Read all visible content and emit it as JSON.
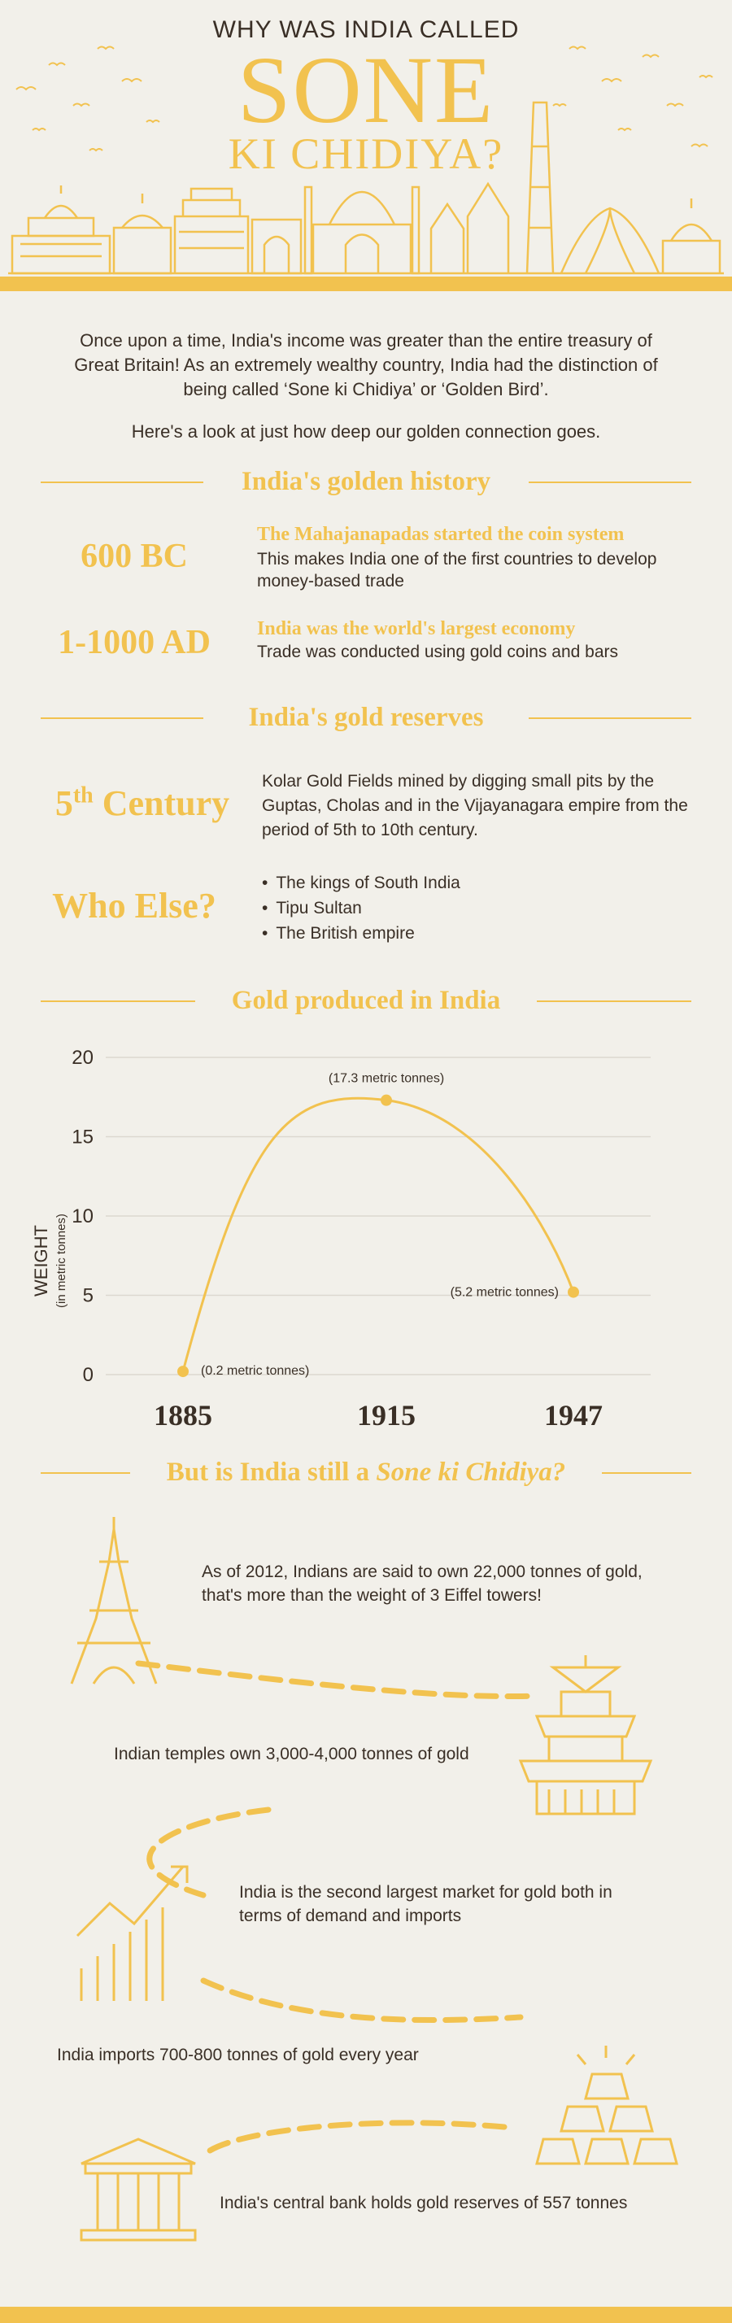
{
  "header": {
    "line1": "WHY WAS INDIA CALLED",
    "line2": "SONE",
    "line3": "KI CHIDIYA?"
  },
  "intro": {
    "p1": "Once upon a time, India's income was greater than the entire treasury of Great Britain! As an extremely wealthy country, India had the distinction of being called ‘Sone ki Chidiya’ or ‘Golden Bird’.",
    "p2": "Here's a look at just how deep our golden connection goes."
  },
  "history": {
    "title": "India's golden history",
    "items": [
      {
        "year": "600 BC",
        "title": "The Mahajanapadas started the coin system",
        "desc": "This makes India one of the first countries to develop money-based trade"
      },
      {
        "year": "1-1000 AD",
        "title": "India was the world's largest economy",
        "desc": "Trade was conducted using gold coins and bars"
      }
    ]
  },
  "reserves": {
    "title": "India's gold reserves",
    "century_num": "5",
    "century_sup": "th",
    "century_word": "Century",
    "century_text": "Kolar Gold Fields mined by digging small pits by the Guptas, Cholas and in the Vijayanagara empire from the period of 5th to 10th century.",
    "who_title": "Who Else?",
    "who_list": [
      "The kings of South India",
      "Tipu Sultan",
      "The British empire"
    ]
  },
  "chart_data": {
    "type": "line",
    "title": "Gold produced in India",
    "ylabel": "WEIGHT",
    "ylabel_sub": "(in metric tonnes)",
    "x": [
      "1885",
      "1915",
      "1947"
    ],
    "values": [
      0.2,
      17.3,
      5.2
    ],
    "annotations": [
      "(0.2 metric tonnes)",
      "(17.3 metric tonnes)",
      "(5.2 metric tonnes)"
    ],
    "yticks": [
      0,
      5,
      10,
      15,
      20
    ],
    "ylim": [
      0,
      20
    ],
    "grid": true,
    "color": "#f2c24f"
  },
  "still": {
    "title_a": "But is India still a ",
    "title_b": "Sone ki Chidiya?",
    "facts": [
      "As of 2012, Indians are said to own 22,000 tonnes of gold, that's more than the weight of 3 Eiffel towers!",
      "Indian temples own 3,000-4,000 tonnes of gold",
      "India is the second largest market for gold both in terms of demand and imports",
      "India imports 700-800 tonnes of gold every year",
      "India's central bank holds gold reserves of 557 tonnes"
    ]
  },
  "colors": {
    "gold": "#f2c24f",
    "text": "#3a2f26",
    "background": "#f2f0ea"
  }
}
